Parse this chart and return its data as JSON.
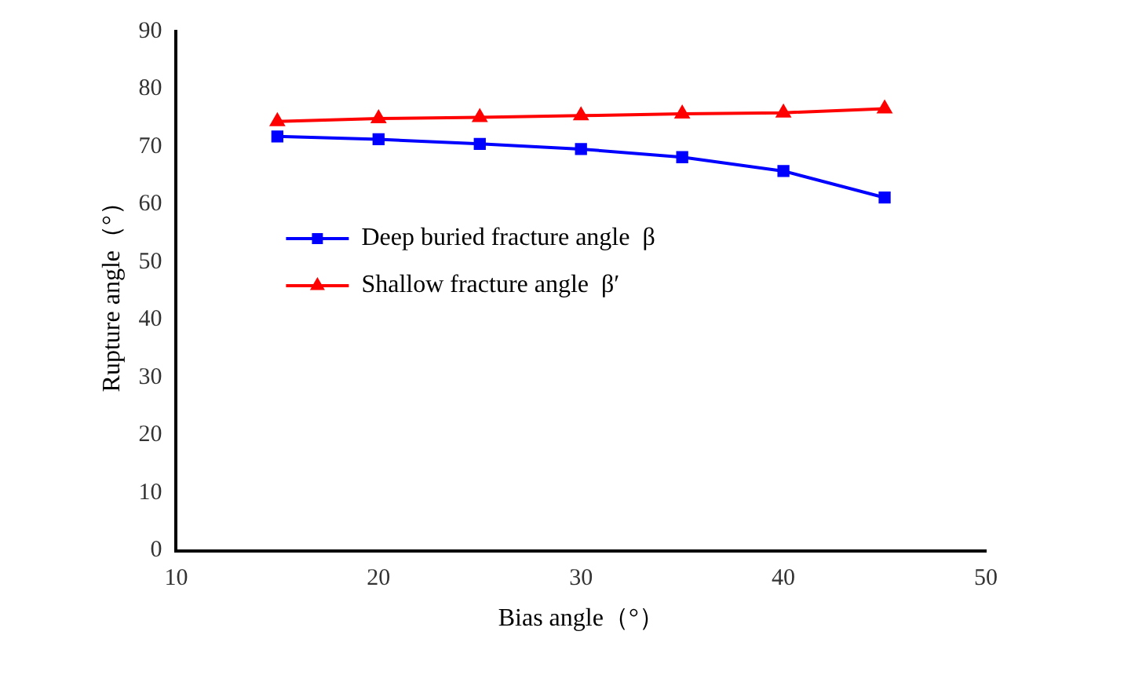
{
  "chart_data": {
    "type": "line",
    "xlabel": "Bias angle（°）",
    "ylabel": "Rupture angle（°）",
    "x": [
      15,
      20,
      25,
      30,
      35,
      40,
      45
    ],
    "series": [
      {
        "name": "Deep buried fracture angle  β",
        "color": "#0000ff",
        "marker": "square",
        "values": [
          71.8,
          71.3,
          70.5,
          69.6,
          68.2,
          65.8,
          61.2
        ]
      },
      {
        "name": "Shallow fracture angle  β′",
        "color": "#ff0000",
        "marker": "triangle",
        "values": [
          74.4,
          74.9,
          75.1,
          75.4,
          75.7,
          75.9,
          76.6
        ]
      }
    ],
    "xlim": [
      10,
      50
    ],
    "xticks": [
      10,
      20,
      30,
      40,
      50
    ],
    "ylim": [
      0,
      90
    ],
    "yticks": [
      0,
      10,
      20,
      30,
      40,
      50,
      60,
      70,
      80,
      90
    ],
    "grid": false,
    "legend": "left",
    "line_style": "solid"
  }
}
